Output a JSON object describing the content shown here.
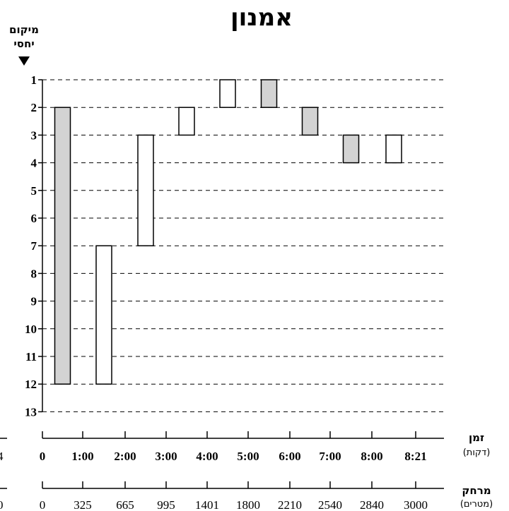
{
  "chart_data": {
    "type": "bar",
    "title": "אמנון",
    "ylabel_line1": "מיקום",
    "ylabel_line2": "יחסי",
    "y_ticks": [
      "1",
      "2",
      "3",
      "4",
      "5",
      "6",
      "7",
      "8",
      "9",
      "10",
      "11",
      "12",
      "13"
    ],
    "ylim": [
      1,
      13
    ],
    "y_inverted": true,
    "grid_style": "dashed horizontal lines at each rank",
    "time_axis": {
      "label": "זמן",
      "unit": "(דקות)",
      "ticks": [
        "0",
        "1:00",
        "2:00",
        "3:00",
        "4:00",
        "5:00",
        "6:00",
        "7:00",
        "8:00",
        "8:21"
      ]
    },
    "distance_axis": {
      "label": "מרחק",
      "unit": "(מטרים)",
      "ticks": [
        "0",
        "325",
        "665",
        "995",
        "1401",
        "1800",
        "2210",
        "2540",
        "2840",
        "3000"
      ]
    },
    "edge_fragments": [
      "4",
      "0"
    ],
    "fill_colors": {
      "shaded": "#d3d3d3",
      "unshaded": "#ffffff"
    },
    "segments": [
      {
        "segment": 1,
        "from_rank": 2,
        "to_rank": 12,
        "shaded": true
      },
      {
        "segment": 2,
        "from_rank": 7,
        "to_rank": 12,
        "shaded": false
      },
      {
        "segment": 3,
        "from_rank": 3,
        "to_rank": 7,
        "shaded": false
      },
      {
        "segment": 4,
        "from_rank": 2,
        "to_rank": 3,
        "shaded": false
      },
      {
        "segment": 5,
        "from_rank": 1,
        "to_rank": 2,
        "shaded": false
      },
      {
        "segment": 6,
        "from_rank": 1,
        "to_rank": 2,
        "shaded": true
      },
      {
        "segment": 7,
        "from_rank": 2,
        "to_rank": 3,
        "shaded": true
      },
      {
        "segment": 8,
        "from_rank": 3,
        "to_rank": 4,
        "shaded": true
      },
      {
        "segment": 9,
        "from_rank": 3,
        "to_rank": 4,
        "shaded": false
      }
    ]
  }
}
